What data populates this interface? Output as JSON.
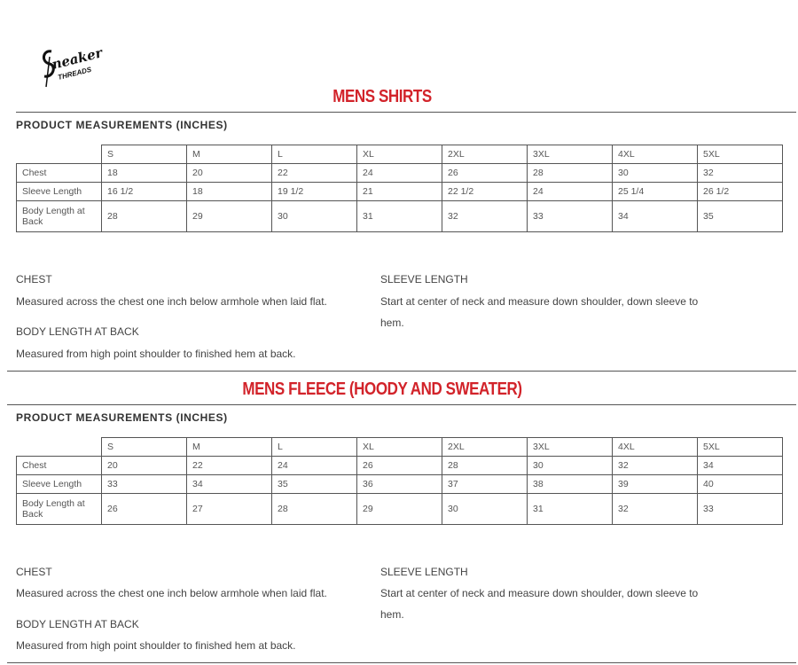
{
  "logo": {
    "text": "Sneaker",
    "subtext": "THREADS"
  },
  "sections": [
    {
      "title": "MENS SHIRTS",
      "subtitle": "PRODUCT MEASUREMENTS (INCHES)",
      "sizes": [
        "S",
        "M",
        "L",
        "XL",
        "2XL",
        "3XL",
        "4XL",
        "5XL"
      ],
      "rows": [
        {
          "label": "Chest",
          "values": [
            "18",
            "20",
            "22",
            "24",
            "26",
            "28",
            "30",
            "32"
          ]
        },
        {
          "label": "Sleeve Length",
          "values": [
            "16 1/2",
            "18",
            "19 1/2",
            "21",
            "22 1/2",
            "24",
            "25 1/4",
            "26 1/2"
          ]
        },
        {
          "label": "Body Length at Back",
          "values": [
            "28",
            "29",
            "30",
            "31",
            "32",
            "33",
            "34",
            "35"
          ]
        }
      ],
      "notes": {
        "chest_heading": "CHEST",
        "chest_text": "Measured across the chest one inch below armhole when laid flat.",
        "body_heading": "BODY LENGTH AT BACK",
        "body_text": "Measured from high point shoulder to finished hem at back.",
        "sleeve_heading": "SLEEVE LENGTH",
        "sleeve_text": "Start at center of neck and measure down shoulder, down sleeve to hem."
      }
    },
    {
      "title": "MENS FLEECE (HOODY AND SWEATER)",
      "subtitle": "PRODUCT MEASUREMENTS (INCHES)",
      "sizes": [
        "S",
        "M",
        "L",
        "XL",
        "2XL",
        "3XL",
        "4XL",
        "5XL"
      ],
      "rows": [
        {
          "label": "Chest",
          "values": [
            "20",
            "22",
            "24",
            "26",
            "28",
            "30",
            "32",
            "34"
          ]
        },
        {
          "label": "Sleeve Length",
          "values": [
            "33",
            "34",
            "35",
            "36",
            "37",
            "38",
            "39",
            "40"
          ]
        },
        {
          "label": "Body Length at Back",
          "values": [
            "26",
            "27",
            "28",
            "29",
            "30",
            "31",
            "32",
            "33"
          ]
        }
      ],
      "notes": {
        "chest_heading": "CHEST",
        "chest_text": "Measured across the chest one inch below armhole when laid flat.",
        "body_heading": "BODY LENGTH AT BACK",
        "body_text": "Measured from high point shoulder to finished hem at back.",
        "sleeve_heading": "SLEEVE LENGTH",
        "sleeve_text": "Start at center of neck and measure down shoulder, down sleeve to hem."
      }
    }
  ],
  "colors": {
    "title_red": "#d2232a",
    "rule": "#555555"
  }
}
